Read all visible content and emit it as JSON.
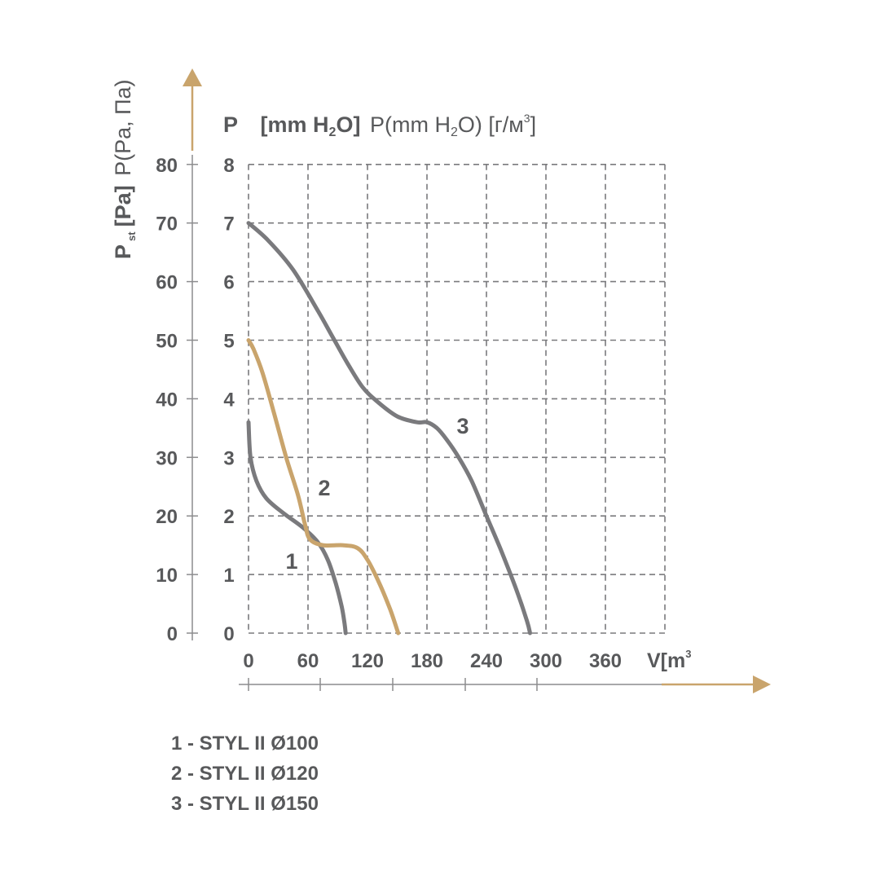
{
  "chart_data": {
    "type": "line",
    "y_left": {
      "label_symbol": "P",
      "label_sub": "st",
      "label_bold": "[Pa]",
      "label_regular": "P(Pa, Па)",
      "range": [
        0,
        80
      ],
      "ticks": [
        "0",
        "10",
        "20",
        "30",
        "40",
        "50",
        "60",
        "70",
        "80"
      ]
    },
    "y_right": {
      "label_symbol": "P",
      "label_bold_pre": "[mm H",
      "label_bold_sub": "2",
      "label_bold_post": "O]",
      "label_reg_pre": "P(mm H",
      "label_reg_sub": "2",
      "label_reg_mid": "O) [г/м",
      "label_reg_sup": "3",
      "label_reg_post": "]",
      "range": [
        0,
        8
      ],
      "ticks": [
        "0",
        "1",
        "2",
        "3",
        "4",
        "5",
        "6",
        "7",
        "8"
      ]
    },
    "x_axis": {
      "label_pre": "V[m",
      "label_sup": "3",
      "range": [
        0,
        420
      ],
      "ticks": [
        "0",
        "60",
        "120",
        "180",
        "240",
        "300",
        "360"
      ]
    },
    "grid": true,
    "series": [
      {
        "name": "1",
        "color": "#7a7a7d",
        "x": [
          0,
          2,
          8,
          18,
          35,
          55,
          70,
          80,
          88,
          94,
          97,
          98
        ],
        "y": [
          3.6,
          3.0,
          2.6,
          2.3,
          2.05,
          1.8,
          1.55,
          1.25,
          0.85,
          0.45,
          0.15,
          0.0
        ]
      },
      {
        "name": "2",
        "color": "#c9a46c",
        "x": [
          0,
          5,
          14,
          25,
          38,
          50,
          57,
          62,
          75,
          95,
          110,
          120,
          132,
          143,
          151
        ],
        "y": [
          5.0,
          4.85,
          4.45,
          3.8,
          3.0,
          2.35,
          1.85,
          1.6,
          1.5,
          1.5,
          1.45,
          1.25,
          0.85,
          0.4,
          0.0
        ]
      },
      {
        "name": "3",
        "color": "#7a7a7d",
        "x": [
          0,
          20,
          45,
          70,
          85,
          100,
          115,
          130,
          150,
          170,
          180,
          190,
          200,
          212,
          225,
          240,
          255,
          270,
          281,
          284
        ],
        "y": [
          7.0,
          6.7,
          6.2,
          5.5,
          5.05,
          4.6,
          4.2,
          3.95,
          3.7,
          3.6,
          3.6,
          3.5,
          3.3,
          3.0,
          2.6,
          2.0,
          1.4,
          0.75,
          0.2,
          0.0
        ]
      }
    ],
    "legend": [
      "1 - STYL II Ø100",
      "2 - STYL II Ø120",
      "3 - STYL II Ø150"
    ]
  }
}
